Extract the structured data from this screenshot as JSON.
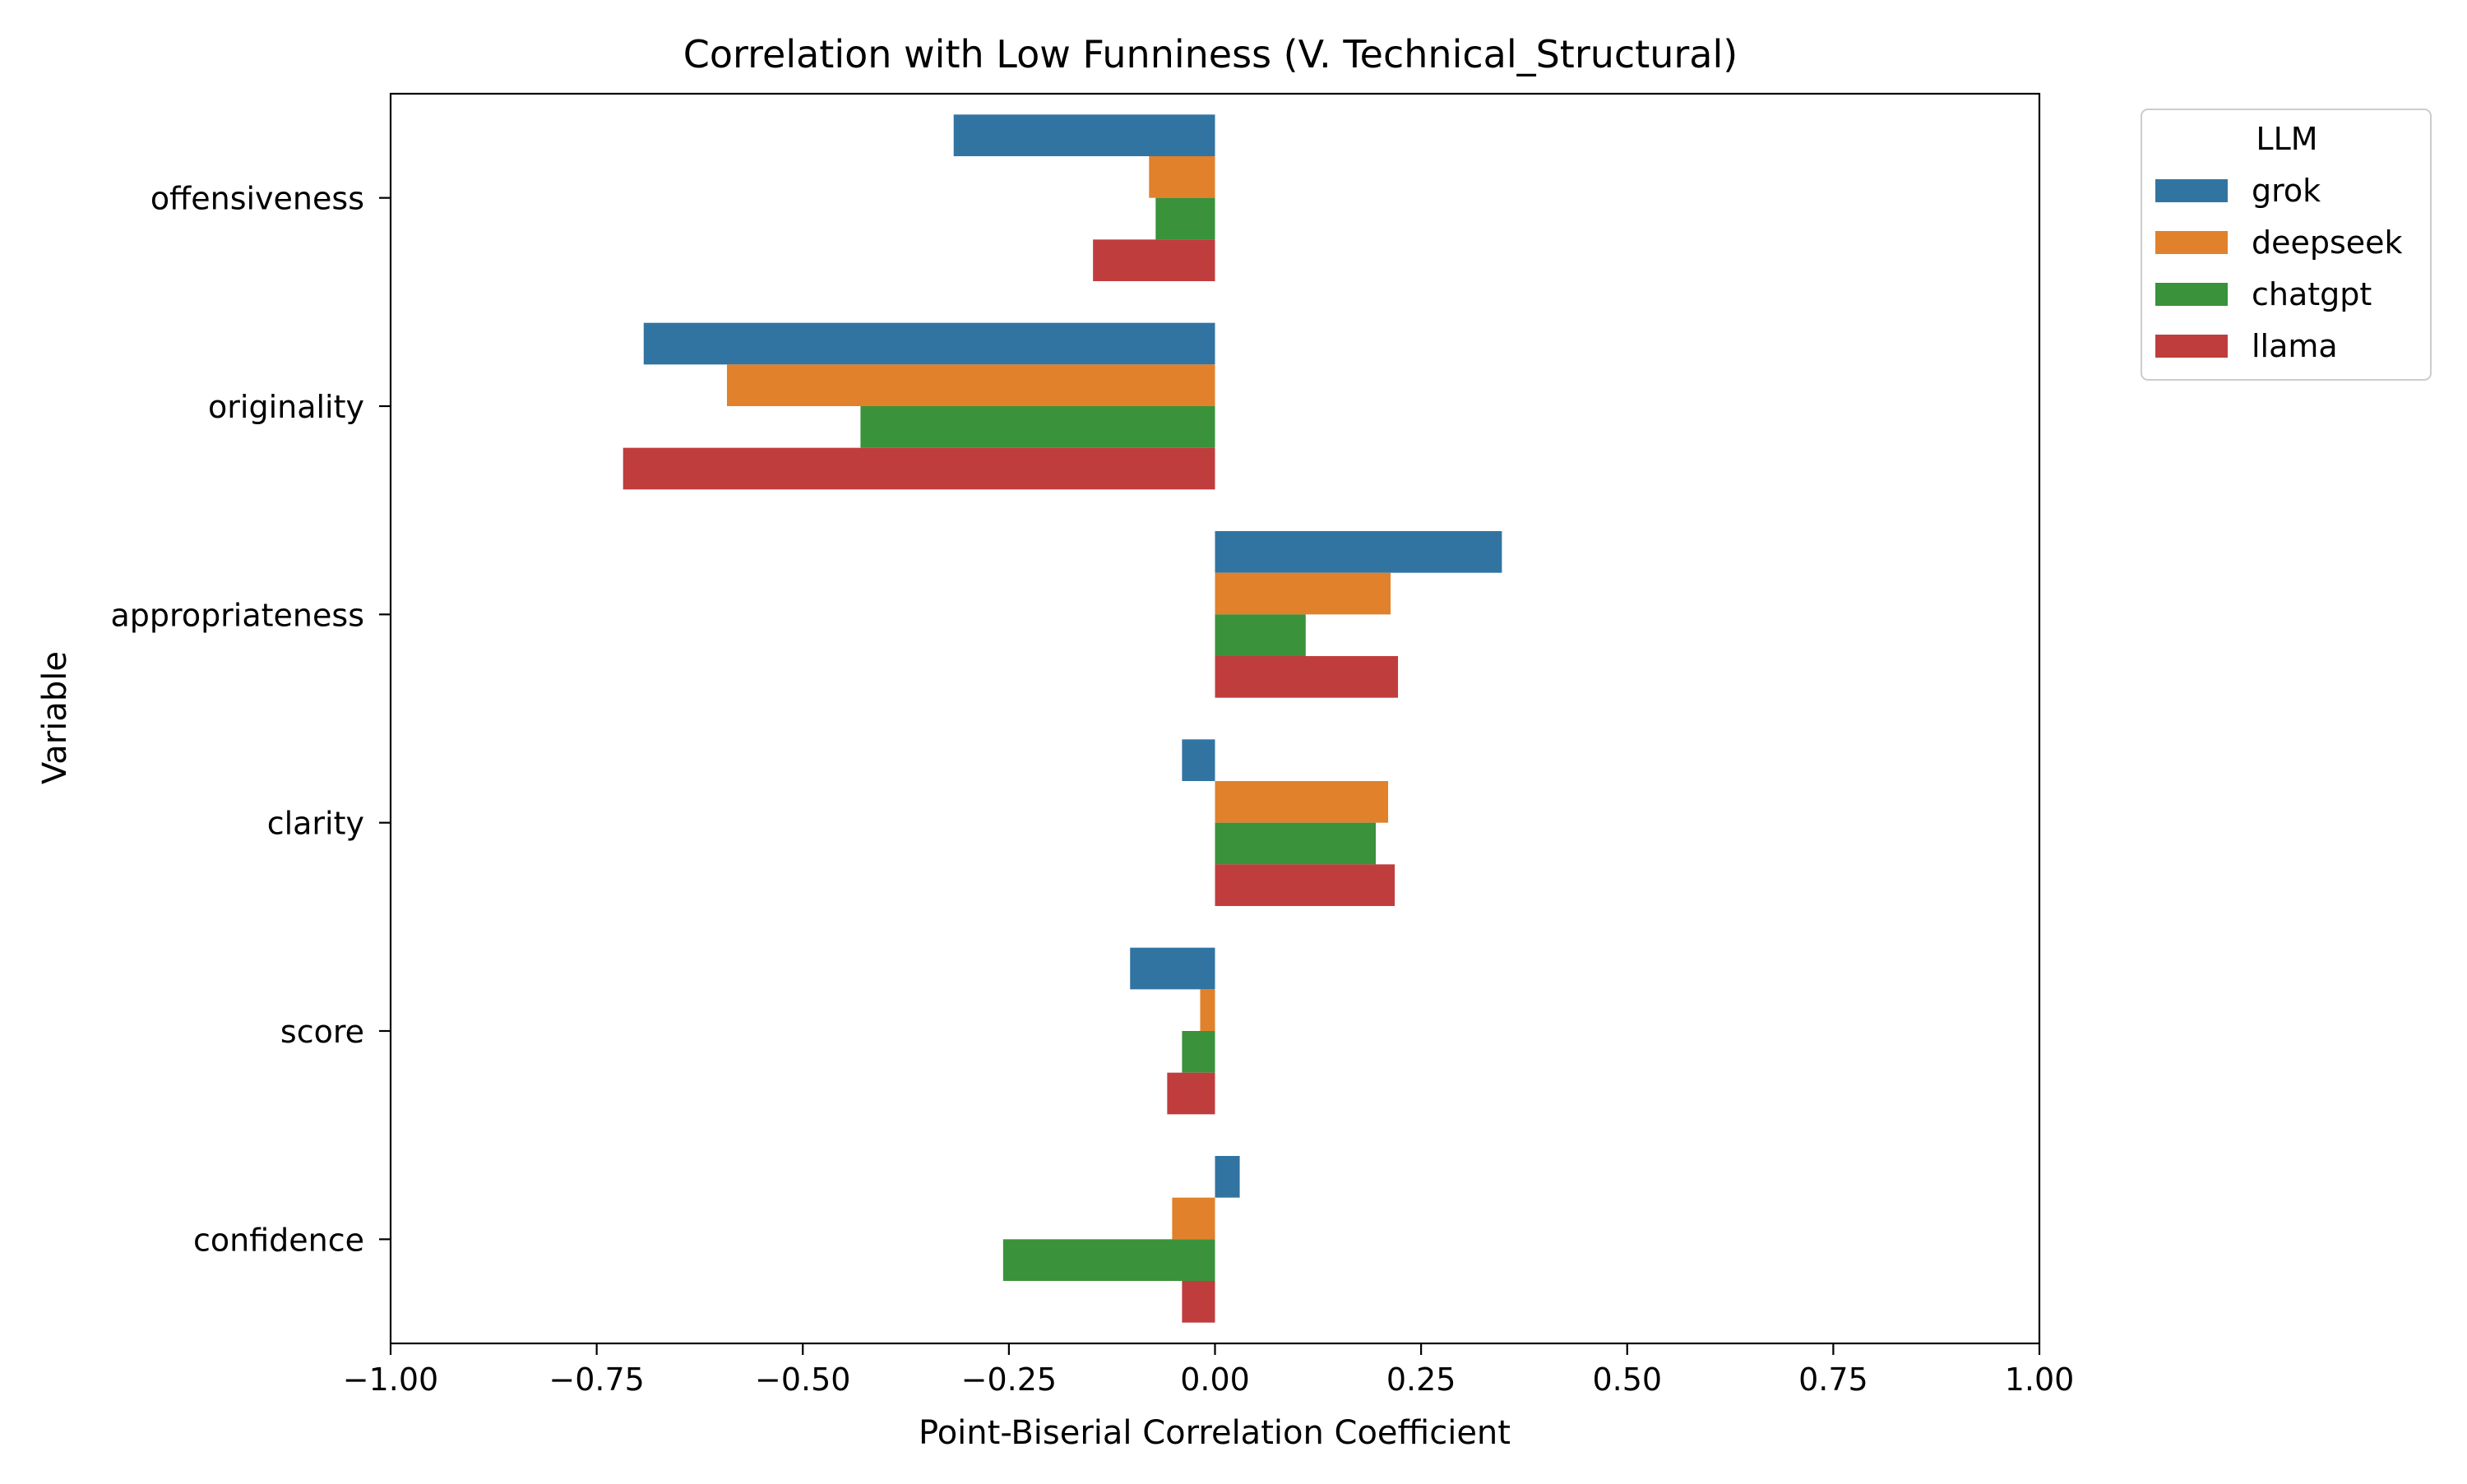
{
  "chart_data": {
    "type": "bar",
    "orientation": "horizontal",
    "title": "Correlation with Low Funniness (V. Technical_Structural)",
    "xlabel": "Point-Biserial Correlation Coefficient",
    "ylabel": "Variable",
    "xlim": [
      -1.0,
      1.0
    ],
    "xticks": [
      "−1.00",
      "−0.75",
      "−0.50",
      "−0.25",
      "0.00",
      "0.25",
      "0.50",
      "0.75",
      "1.00"
    ],
    "xtick_values": [
      -1.0,
      -0.75,
      -0.5,
      -0.25,
      0.0,
      0.25,
      0.5,
      0.75,
      1.0
    ],
    "categories": [
      "offensiveness",
      "originality",
      "appropriateness",
      "clarity",
      "score",
      "confidence"
    ],
    "grid": false,
    "legend": {
      "title": "LLM",
      "placement": "outside-top-right"
    },
    "series": [
      {
        "name": "grok",
        "color": "#3274a1",
        "values": [
          -0.317,
          -0.693,
          0.348,
          -0.04,
          -0.103,
          0.03
        ]
      },
      {
        "name": "deepseek",
        "color": "#e1812c",
        "values": [
          -0.08,
          -0.592,
          0.213,
          0.21,
          -0.018,
          -0.052
        ]
      },
      {
        "name": "chatgpt",
        "color": "#3a923a",
        "values": [
          -0.072,
          -0.43,
          0.11,
          0.195,
          -0.04,
          -0.257
        ]
      },
      {
        "name": "llama",
        "color": "#c03d3e",
        "values": [
          -0.148,
          -0.718,
          0.222,
          0.218,
          -0.058,
          -0.04
        ]
      }
    ]
  }
}
